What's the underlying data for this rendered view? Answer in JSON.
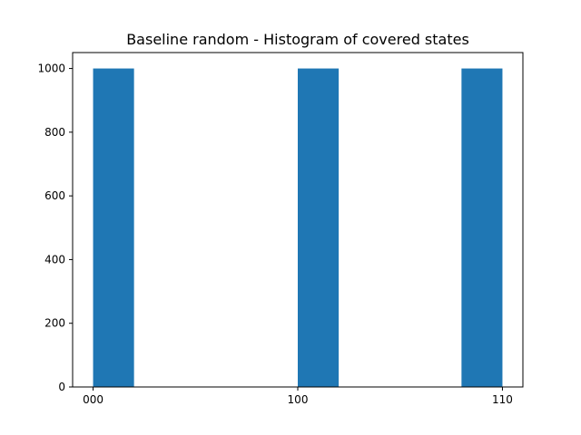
{
  "chart_data": {
    "type": "bar",
    "title": "Baseline random - Histogram of covered states",
    "xlabel": "",
    "ylabel": "",
    "bins": [
      {
        "start": 0,
        "end": 0.2
      },
      {
        "start": 1,
        "end": 1.2
      },
      {
        "start": 1.8,
        "end": 2.0
      }
    ],
    "values": [
      1000,
      1000,
      1000
    ],
    "xlim": [
      -0.1,
      2.1
    ],
    "ylim": [
      0,
      1050
    ],
    "x_ticks": [
      {
        "value": 0,
        "label": "000"
      },
      {
        "value": 1,
        "label": "100"
      },
      {
        "value": 2,
        "label": "110"
      }
    ],
    "y_ticks": [
      {
        "value": 0,
        "label": "0"
      },
      {
        "value": 200,
        "label": "200"
      },
      {
        "value": 400,
        "label": "400"
      },
      {
        "value": 600,
        "label": "600"
      },
      {
        "value": 800,
        "label": "800"
      },
      {
        "value": 1000,
        "label": "1000"
      }
    ],
    "bar_color": "#1f77b4",
    "grid": false,
    "legend": false
  }
}
